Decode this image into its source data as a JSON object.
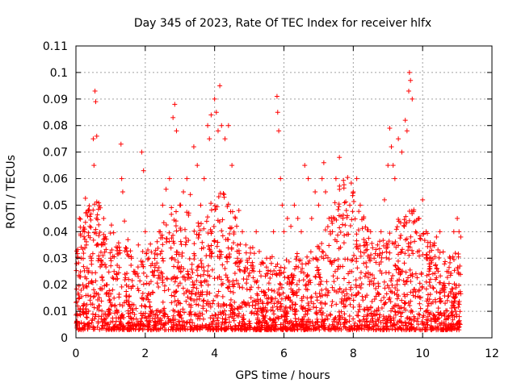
{
  "chart_data": {
    "type": "scatter",
    "title": "Day 345 of 2023, Rate Of TEC Index for receiver hlfx",
    "xlabel": "GPS time / hours",
    "ylabel": "ROTI / TECUs",
    "xlim": [
      0,
      12
    ],
    "ylim": [
      0,
      0.11
    ],
    "xticks": [
      0,
      2,
      4,
      6,
      8,
      10,
      12
    ],
    "xtick_labels": [
      "0",
      "2",
      "4",
      "6",
      "8",
      "10",
      "12"
    ],
    "yticks": [
      0,
      0.01,
      0.02,
      0.03,
      0.04,
      0.05,
      0.06,
      0.07,
      0.08,
      0.09,
      0.1,
      0.11
    ],
    "ytick_labels": [
      "0",
      "0.01",
      "0.02",
      "0.03",
      "0.04",
      "0.05",
      "0.06",
      "0.07",
      "0.08",
      "0.09",
      "0.1",
      "0.11"
    ],
    "grid": true,
    "marker": "+",
    "color": "#ff0000",
    "series": [
      {
        "name": "ROTI",
        "points": [
          [
            0.05,
            0.012
          ],
          [
            0.1,
            0.045
          ],
          [
            0.15,
            0.03
          ],
          [
            0.2,
            0.02
          ],
          [
            0.25,
            0.04
          ],
          [
            0.3,
            0.035
          ],
          [
            0.35,
            0.048
          ],
          [
            0.4,
            0.042
          ],
          [
            0.45,
            0.03
          ],
          [
            0.5,
            0.075
          ],
          [
            0.52,
            0.065
          ],
          [
            0.55,
            0.093
          ],
          [
            0.57,
            0.089
          ],
          [
            0.6,
            0.076
          ],
          [
            0.7,
            0.049
          ],
          [
            0.8,
            0.045
          ],
          [
            0.9,
            0.02
          ],
          [
            1.0,
            0.03
          ],
          [
            1.1,
            0.025
          ],
          [
            1.2,
            0.034
          ],
          [
            1.3,
            0.073
          ],
          [
            1.32,
            0.06
          ],
          [
            1.35,
            0.055
          ],
          [
            1.4,
            0.044
          ],
          [
            1.5,
            0.037
          ],
          [
            1.6,
            0.03
          ],
          [
            1.7,
            0.025
          ],
          [
            1.8,
            0.035
          ],
          [
            1.9,
            0.07
          ],
          [
            1.95,
            0.063
          ],
          [
            2.0,
            0.04
          ],
          [
            2.1,
            0.03
          ],
          [
            2.2,
            0.028
          ],
          [
            2.3,
            0.033
          ],
          [
            2.4,
            0.04
          ],
          [
            2.5,
            0.05
          ],
          [
            2.6,
            0.056
          ],
          [
            2.7,
            0.06
          ],
          [
            2.8,
            0.083
          ],
          [
            2.85,
            0.088
          ],
          [
            2.9,
            0.078
          ],
          [
            3.0,
            0.05
          ],
          [
            3.1,
            0.055
          ],
          [
            3.2,
            0.06
          ],
          [
            3.3,
            0.054
          ],
          [
            3.4,
            0.072
          ],
          [
            3.5,
            0.065
          ],
          [
            3.6,
            0.05
          ],
          [
            3.7,
            0.06
          ],
          [
            3.8,
            0.08
          ],
          [
            3.85,
            0.075
          ],
          [
            3.9,
            0.084
          ],
          [
            4.0,
            0.09
          ],
          [
            4.05,
            0.085
          ],
          [
            4.1,
            0.078
          ],
          [
            4.15,
            0.095
          ],
          [
            4.2,
            0.08
          ],
          [
            4.3,
            0.075
          ],
          [
            4.4,
            0.08
          ],
          [
            4.5,
            0.065
          ],
          [
            4.6,
            0.045
          ],
          [
            4.7,
            0.048
          ],
          [
            4.8,
            0.04
          ],
          [
            4.9,
            0.035
          ],
          [
            5.0,
            0.03
          ],
          [
            5.1,
            0.034
          ],
          [
            5.2,
            0.04
          ],
          [
            5.3,
            0.025
          ],
          [
            5.4,
            0.028
          ],
          [
            5.5,
            0.03
          ],
          [
            5.6,
            0.03
          ],
          [
            5.7,
            0.04
          ],
          [
            5.8,
            0.091
          ],
          [
            5.82,
            0.085
          ],
          [
            5.85,
            0.078
          ],
          [
            5.9,
            0.06
          ],
          [
            5.95,
            0.05
          ],
          [
            6.0,
            0.04
          ],
          [
            6.1,
            0.045
          ],
          [
            6.2,
            0.042
          ],
          [
            6.3,
            0.05
          ],
          [
            6.4,
            0.045
          ],
          [
            6.5,
            0.04
          ],
          [
            6.6,
            0.065
          ],
          [
            6.7,
            0.06
          ],
          [
            6.8,
            0.045
          ],
          [
            6.9,
            0.055
          ],
          [
            7.0,
            0.05
          ],
          [
            7.1,
            0.06
          ],
          [
            7.15,
            0.066
          ],
          [
            7.2,
            0.055
          ],
          [
            7.3,
            0.045
          ],
          [
            7.4,
            0.04
          ],
          [
            7.5,
            0.06
          ],
          [
            7.6,
            0.068
          ],
          [
            7.7,
            0.045
          ],
          [
            7.8,
            0.048
          ],
          [
            7.9,
            0.05
          ],
          [
            8.0,
            0.055
          ],
          [
            8.1,
            0.06
          ],
          [
            8.2,
            0.05
          ],
          [
            8.3,
            0.045
          ],
          [
            8.4,
            0.035
          ],
          [
            8.5,
            0.04
          ],
          [
            8.6,
            0.03
          ],
          [
            8.7,
            0.035
          ],
          [
            8.8,
            0.04
          ],
          [
            8.9,
            0.052
          ],
          [
            9.0,
            0.065
          ],
          [
            9.05,
            0.079
          ],
          [
            9.1,
            0.072
          ],
          [
            9.15,
            0.065
          ],
          [
            9.2,
            0.06
          ],
          [
            9.3,
            0.075
          ],
          [
            9.4,
            0.07
          ],
          [
            9.5,
            0.082
          ],
          [
            9.55,
            0.078
          ],
          [
            9.6,
            0.093
          ],
          [
            9.62,
            0.1
          ],
          [
            9.65,
            0.097
          ],
          [
            9.7,
            0.09
          ],
          [
            9.8,
            0.04
          ],
          [
            9.9,
            0.045
          ],
          [
            10.0,
            0.052
          ],
          [
            10.1,
            0.04
          ],
          [
            10.2,
            0.03
          ],
          [
            10.3,
            0.035
          ],
          [
            10.4,
            0.038
          ],
          [
            10.5,
            0.04
          ],
          [
            10.6,
            0.02
          ],
          [
            10.7,
            0.025
          ],
          [
            10.8,
            0.03
          ],
          [
            10.9,
            0.04
          ],
          [
            11.0,
            0.045
          ],
          [
            11.05,
            0.04
          ],
          [
            11.1,
            0.038
          ]
        ]
      }
    ]
  }
}
